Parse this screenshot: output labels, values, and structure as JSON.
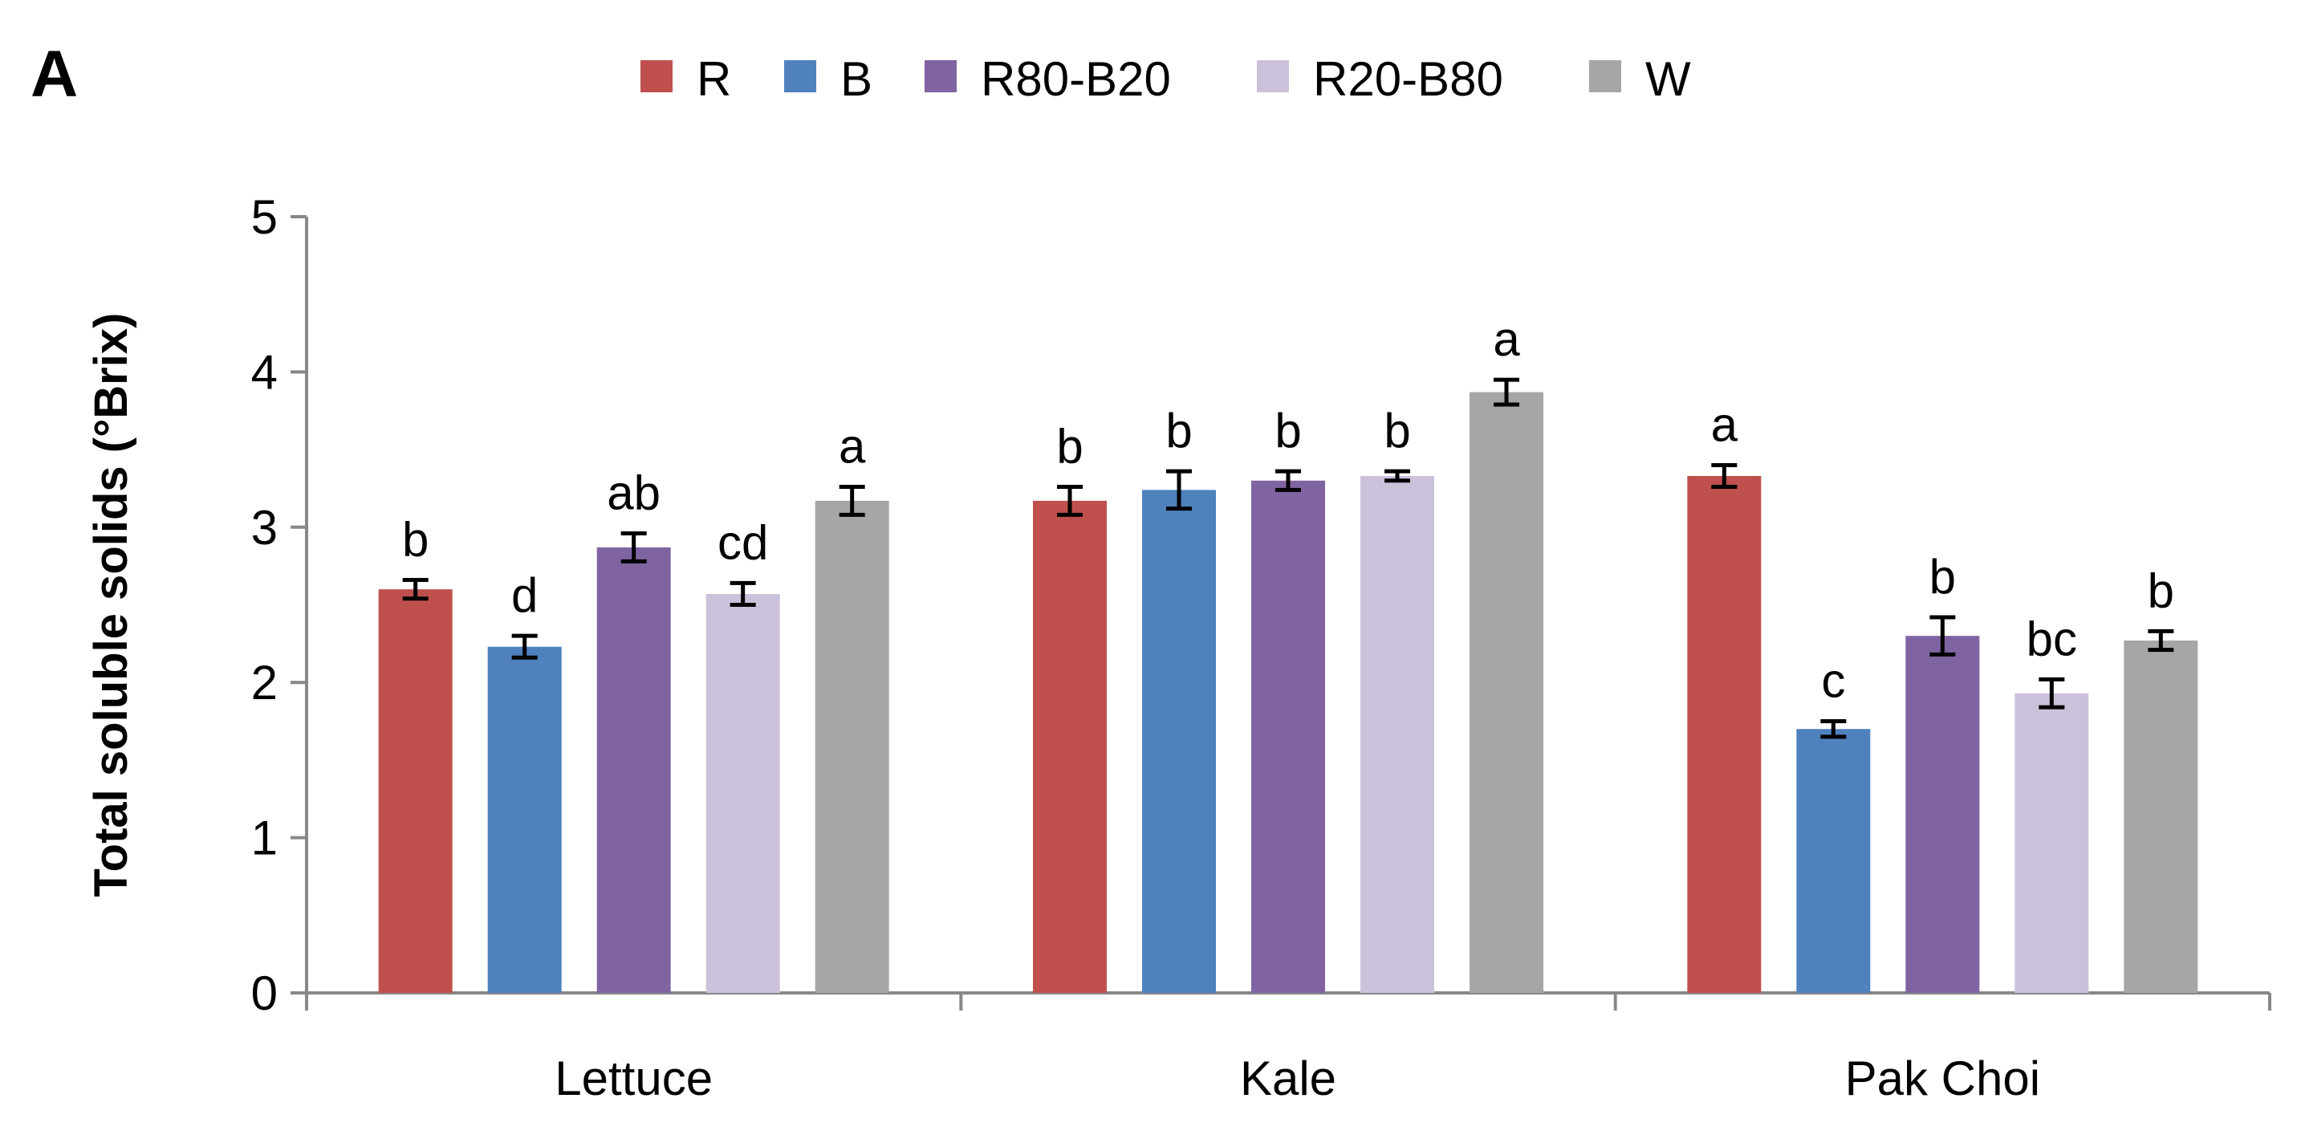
{
  "chart_data": {
    "type": "bar",
    "panel_label": "A",
    "title": "",
    "xlabel": "",
    "ylabel": "Total soluble solids (°Brix)",
    "ylim": [
      0,
      5
    ],
    "yticks": [
      0,
      1,
      2,
      3,
      4,
      5
    ],
    "grid": false,
    "legend_position": "top",
    "categories": [
      "Lettuce",
      "Kale",
      "Pak Choi"
    ],
    "series": [
      {
        "name": "R",
        "color": "#C0504D",
        "values": [
          2.6,
          3.17,
          3.33
        ],
        "errors": [
          0.06,
          0.09,
          0.07
        ],
        "letters": [
          "b",
          "b",
          "a"
        ]
      },
      {
        "name": "B",
        "color": "#4F81BD",
        "values": [
          2.23,
          3.24,
          1.7
        ],
        "errors": [
          0.07,
          0.12,
          0.05
        ],
        "letters": [
          "d",
          "b",
          "c"
        ]
      },
      {
        "name": "R80-B20",
        "color": "#8064A2",
        "values": [
          2.87,
          3.3,
          2.3
        ],
        "errors": [
          0.09,
          0.06,
          0.12
        ],
        "letters": [
          "ab",
          "b",
          "b"
        ]
      },
      {
        "name": "R20-B80",
        "color": "#CCC1DA",
        "values": [
          2.57,
          3.33,
          1.93
        ],
        "errors": [
          0.07,
          0.03,
          0.09
        ],
        "letters": [
          "cd",
          "b",
          "bc"
        ]
      },
      {
        "name": "W",
        "color": "#A6A6A6",
        "values": [
          3.17,
          3.87,
          2.27
        ],
        "errors": [
          0.09,
          0.08,
          0.06
        ],
        "letters": [
          "a",
          "a",
          "b"
        ]
      }
    ]
  }
}
